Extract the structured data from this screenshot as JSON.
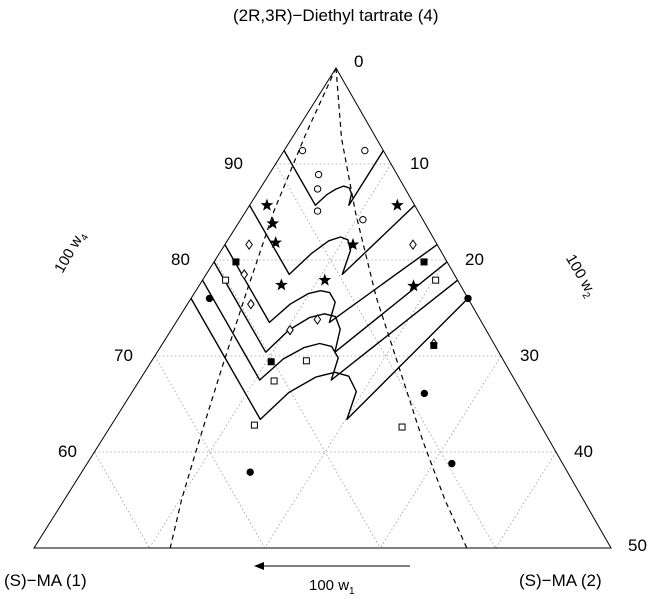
{
  "chart_data": {
    "type": "scatter",
    "subtype": "ternary phase diagram",
    "components": {
      "top": "(2R,3R)−Diethyl tartrate (4)",
      "bottom_left": "(S)−MA (1)",
      "bottom_right": "(S)−MA (2)"
    },
    "axes": {
      "w4": {
        "label": "100 w",
        "sub": "4",
        "ticks": [
          "90",
          "80",
          "70",
          "60"
        ]
      },
      "w2": {
        "label": "100 w",
        "sub": "2",
        "ticks": [
          "0",
          "10",
          "20",
          "30",
          "40",
          "50"
        ]
      },
      "w1": {
        "label": "100 w",
        "sub": "1",
        "arrow": "left"
      }
    },
    "grid": true,
    "ternary_range": {
      "w4": [
        50,
        100
      ],
      "w2": [
        0,
        50
      ]
    },
    "marker_styles": {
      "open-circle": {
        "shape": "circle",
        "fill": "#ffffff"
      },
      "star": {
        "shape": "star",
        "fill": "#000000"
      },
      "open-diamond": {
        "shape": "diamond",
        "fill": "#ffffff"
      },
      "filled-square": {
        "shape": "square",
        "fill": "#000000"
      },
      "open-square": {
        "shape": "square",
        "fill": "#ffffff"
      },
      "filled-circle": {
        "shape": "circle",
        "fill": "#000000"
      }
    },
    "series": [
      {
        "marker": "open-circle",
        "points": [
          [
            91.4,
            1.6
          ],
          [
            88.9,
            4.3
          ],
          [
            87.4,
            5.0
          ],
          [
            85.1,
            6.2
          ],
          [
            84.2,
            10.6
          ],
          [
            91.4,
            7.0
          ]
        ]
      },
      {
        "marker": "star",
        "points": [
          [
            85.7,
            1.5
          ],
          [
            83.8,
            3.0
          ],
          [
            81.8,
            4.3
          ],
          [
            77.4,
            7.1
          ],
          [
            77.9,
            10.6
          ],
          [
            81.6,
            11.1
          ],
          [
            77.3,
            18.6
          ],
          [
            85.7,
            12.8
          ]
        ]
      },
      {
        "marker": "open-diamond",
        "points": [
          [
            81.6,
            2.1
          ],
          [
            78.5,
            3.3
          ],
          [
            75.4,
            5.5
          ],
          [
            72.7,
            10.3
          ],
          [
            73.8,
            12.1
          ],
          [
            71.3,
            23.5
          ],
          [
            81.6,
            16.3
          ]
        ]
      },
      {
        "marker": "filled-square",
        "points": [
          [
            79.8,
            1.9
          ],
          [
            69.4,
            10.4
          ],
          [
            71.1,
            23.6
          ],
          [
            79.8,
            18.2
          ]
        ]
      },
      {
        "marker": "filled-circle",
        "points": [
          [
            76.0,
            1.6
          ],
          [
            66.1,
            25.4
          ],
          [
            57.9,
            14.6
          ],
          [
            58.8,
            31.6
          ],
          [
            76.0,
            24.0
          ]
        ]
      },
      {
        "marker": "open-square",
        "points": [
          [
            77.9,
            2.0
          ],
          [
            67.4,
            11.7
          ],
          [
            62.8,
            12.4
          ],
          [
            69.5,
            13.4
          ],
          [
            62.6,
            25.3
          ],
          [
            77.9,
            20.2
          ]
        ]
      }
    ],
    "boundary_lines": [
      {
        "style": "solid",
        "points": [
          [
            91.4,
            0
          ],
          [
            85.7,
            5.7
          ],
          [
            86.8,
            6.1
          ],
          [
            87.4,
            6.6
          ],
          [
            87.7,
            7.1
          ],
          [
            87.5,
            7.7
          ],
          [
            86.9,
            8.2
          ],
          [
            85.7,
            8.6
          ],
          [
            91.4,
            8.6
          ]
        ]
      },
      {
        "style": "solid",
        "points": [
          [
            85.7,
            0
          ],
          [
            78.5,
            7.2
          ],
          [
            80.7,
            8.0
          ],
          [
            82.0,
            8.8
          ],
          [
            82.4,
            9.6
          ],
          [
            82.1,
            10.4
          ],
          [
            81.0,
            11.2
          ],
          [
            78.5,
            11.8
          ],
          [
            85.7,
            14.3
          ]
        ]
      },
      {
        "style": "solid",
        "points": [
          [
            81.6,
            0
          ],
          [
            73.5,
            8.1
          ],
          [
            75.4,
            8.9
          ],
          [
            76.5,
            9.9
          ],
          [
            76.8,
            10.8
          ],
          [
            76.6,
            11.7
          ],
          [
            75.6,
            12.7
          ],
          [
            73.5,
            13.3
          ],
          [
            81.6,
            18.4
          ]
        ]
      },
      {
        "style": "solid",
        "points": [
          [
            79.8,
            0
          ],
          [
            70.4,
            9.4
          ],
          [
            72.7,
            10.2
          ],
          [
            74.0,
            11.3
          ],
          [
            74.4,
            12.4
          ],
          [
            74.1,
            13.5
          ],
          [
            72.8,
            14.6
          ],
          [
            70.4,
            15.4
          ],
          [
            79.8,
            20.2
          ]
        ]
      },
      {
        "style": "solid",
        "points": [
          [
            77.9,
            0
          ],
          [
            67.5,
            10.4
          ],
          [
            69.7,
            11.3
          ],
          [
            70.9,
            12.5
          ],
          [
            71.3,
            13.6
          ],
          [
            71.0,
            14.8
          ],
          [
            69.8,
            16.0
          ],
          [
            67.5,
            16.6
          ],
          [
            77.9,
            22.1
          ]
        ]
      },
      {
        "style": "solid",
        "points": [
          [
            76.0,
            0
          ],
          [
            63.4,
            12.6
          ],
          [
            66.2,
            13.6
          ],
          [
            67.8,
            15.1
          ],
          [
            68.3,
            16.5
          ],
          [
            67.9,
            17.9
          ],
          [
            66.3,
            19.4
          ],
          [
            63.4,
            20.1
          ],
          [
            76.0,
            24.0
          ]
        ]
      },
      {
        "style": "dashed",
        "points": [
          [
            100,
            0
          ],
          [
            93.0,
            1.0
          ],
          [
            85.2,
            2.4
          ],
          [
            76.5,
            4.5
          ],
          [
            68.6,
            6.5
          ],
          [
            61.4,
            8.4
          ],
          [
            55.2,
            10.1
          ],
          [
            50.0,
            11.8
          ]
        ]
      },
      {
        "style": "dashed",
        "points": [
          [
            100,
            0
          ],
          [
            92.7,
            4.3
          ],
          [
            84.9,
            9.6
          ],
          [
            76.1,
            16.0
          ],
          [
            68.8,
            21.8
          ],
          [
            61.1,
            27.9
          ],
          [
            55.0,
            33.0
          ],
          [
            50.0,
            37.5
          ]
        ]
      }
    ]
  }
}
